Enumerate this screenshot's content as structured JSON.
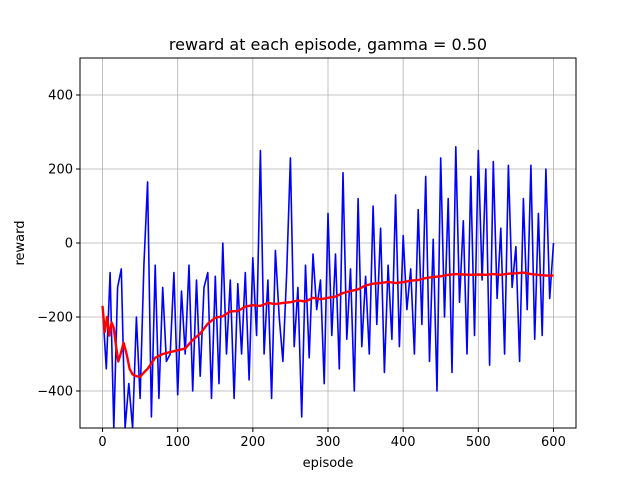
{
  "chart_data": {
    "type": "line",
    "title": "reward at each episode, gamma = 0.50",
    "xlabel": "episode",
    "ylabel": "reward",
    "xlim": [
      -30,
      630
    ],
    "ylim": [
      -500,
      500
    ],
    "xticks": [
      0,
      100,
      200,
      300,
      400,
      500,
      600
    ],
    "yticks": [
      -400,
      -200,
      0,
      200,
      400
    ],
    "grid": true,
    "colors": {
      "raw": "#0000ff",
      "average": "#ff0000"
    },
    "series": [
      {
        "role": "raw",
        "x": [
          0,
          5,
          10,
          15,
          20,
          25,
          30,
          35,
          40,
          45,
          50,
          55,
          60,
          65,
          70,
          75,
          80,
          85,
          90,
          95,
          100,
          105,
          110,
          115,
          120,
          125,
          130,
          135,
          140,
          145,
          150,
          155,
          160,
          165,
          170,
          175,
          180,
          185,
          190,
          195,
          200,
          205,
          210,
          215,
          220,
          225,
          230,
          235,
          240,
          245,
          250,
          255,
          260,
          265,
          270,
          275,
          280,
          285,
          290,
          295,
          300,
          305,
          310,
          315,
          320,
          325,
          330,
          335,
          340,
          345,
          350,
          355,
          360,
          365,
          370,
          375,
          380,
          385,
          390,
          395,
          400,
          405,
          410,
          415,
          420,
          425,
          430,
          435,
          440,
          445,
          450,
          455,
          460,
          465,
          470,
          475,
          480,
          485,
          490,
          495,
          500,
          505,
          510,
          515,
          520,
          525,
          530,
          535,
          540,
          545,
          550,
          555,
          560,
          565,
          570,
          575,
          580,
          585,
          590,
          595,
          600
        ],
        "values": [
          -170,
          -340,
          -80,
          -500,
          -120,
          -70,
          -500,
          -380,
          -500,
          -200,
          -420,
          -60,
          165,
          -470,
          -60,
          -420,
          -120,
          -320,
          -300,
          -80,
          -410,
          -130,
          -300,
          -60,
          -400,
          -100,
          -360,
          -120,
          -80,
          -420,
          -90,
          -380,
          0,
          -300,
          -100,
          -420,
          -110,
          -300,
          -80,
          -370,
          -40,
          -250,
          250,
          -300,
          -100,
          -420,
          -20,
          -200,
          -320,
          -80,
          230,
          -280,
          -120,
          -470,
          -60,
          -310,
          -30,
          -180,
          -100,
          -380,
          80,
          -250,
          -30,
          -340,
          190,
          -260,
          -70,
          -400,
          120,
          -280,
          -90,
          -300,
          100,
          -220,
          40,
          -350,
          -60,
          -260,
          130,
          -280,
          20,
          -180,
          -70,
          -300,
          90,
          -220,
          180,
          -320,
          10,
          -400,
          230,
          -200,
          120,
          -350,
          260,
          -160,
          60,
          -300,
          180,
          -250,
          250,
          -100,
          200,
          -330,
          220,
          -150,
          40,
          -300,
          210,
          -120,
          -10,
          -320,
          120,
          -180,
          210,
          -260,
          80,
          -250,
          200,
          -150,
          0
        ]
      },
      {
        "role": "average",
        "x": [
          0,
          3,
          6,
          9,
          12,
          15,
          18,
          21,
          24,
          28,
          32,
          36,
          40,
          45,
          50,
          55,
          60,
          65,
          70,
          75,
          80,
          90,
          100,
          110,
          120,
          130,
          140,
          150,
          160,
          170,
          180,
          190,
          200,
          210,
          220,
          230,
          240,
          250,
          260,
          270,
          280,
          290,
          300,
          310,
          320,
          330,
          340,
          350,
          360,
          370,
          380,
          390,
          400,
          410,
          420,
          430,
          440,
          450,
          460,
          470,
          480,
          490,
          500,
          510,
          520,
          530,
          540,
          550,
          560,
          570,
          580,
          590,
          600
        ],
        "values": [
          -170,
          -240,
          -200,
          -250,
          -215,
          -230,
          -280,
          -320,
          -300,
          -270,
          -300,
          -340,
          -355,
          -360,
          -362,
          -350,
          -340,
          -325,
          -310,
          -305,
          -300,
          -295,
          -290,
          -285,
          -262,
          -245,
          -218,
          -202,
          -198,
          -185,
          -184,
          -172,
          -168,
          -170,
          -162,
          -165,
          -162,
          -160,
          -155,
          -158,
          -148,
          -152,
          -148,
          -145,
          -135,
          -130,
          -125,
          -115,
          -110,
          -108,
          -105,
          -108,
          -106,
          -102,
          -100,
          -95,
          -92,
          -90,
          -86,
          -84,
          -85,
          -86,
          -85,
          -86,
          -84,
          -86,
          -83,
          -82,
          -80,
          -84,
          -86,
          -88,
          -88
        ]
      }
    ]
  }
}
